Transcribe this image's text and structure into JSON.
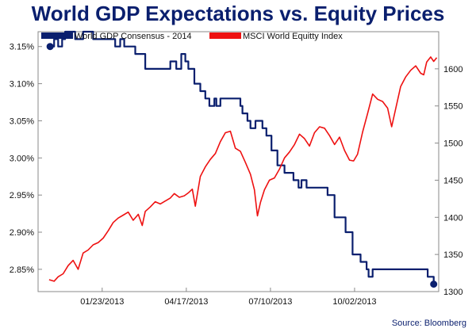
{
  "colors": {
    "title": "#0a1f6e",
    "gdp": "#0a1f6e",
    "equity": "#ee1111",
    "plot_bg": "#ffffff",
    "frame": "#8a8a8a"
  },
  "chart_data": {
    "type": "line",
    "title": "World GDP Expectations vs. Equity Prices",
    "source": "Source: Bloomberg",
    "grid": false,
    "legend_position": "top-left",
    "x_axis": {
      "range": [
        "2012-11-20",
        "2013-12-25"
      ],
      "tick_dates": [
        "2013-01-23",
        "2013-04-17",
        "2013-07-10",
        "2013-10-02"
      ],
      "tick_labels": [
        "01/23/2013",
        "04/17/2013",
        "07/10/2013",
        "10/02/2013"
      ]
    },
    "y_left": {
      "range": [
        2.82,
        3.17
      ],
      "ticks": [
        2.85,
        2.9,
        2.95,
        3.0,
        3.05,
        3.1,
        3.15
      ],
      "tick_labels": [
        "2.85%",
        "2.90%",
        "2.95%",
        "3.00%",
        "3.05%",
        "3.10%",
        "3.15%"
      ]
    },
    "y_right": {
      "range": [
        1300,
        1650
      ],
      "ticks": [
        1300,
        1350,
        1400,
        1450,
        1500,
        1550,
        1600
      ],
      "tick_labels": [
        "1300",
        "1350",
        "1400",
        "1450",
        "1500",
        "1550",
        "1600"
      ]
    },
    "series": [
      {
        "name": "World GDP Consensus - 2014",
        "axis": "left",
        "color": "#0a1f6e",
        "step": true,
        "points": [
          [
            "2012-12-02",
            3.15
          ],
          [
            "2012-12-06",
            3.16
          ],
          [
            "2012-12-10",
            3.15
          ],
          [
            "2012-12-14",
            3.16
          ],
          [
            "2012-12-17",
            3.17
          ],
          [
            "2012-12-27",
            3.16
          ],
          [
            "2013-01-04",
            3.17
          ],
          [
            "2013-01-14",
            3.16
          ],
          [
            "2013-01-17",
            3.16
          ],
          [
            "2013-02-05",
            3.15
          ],
          [
            "2013-02-10",
            3.16
          ],
          [
            "2013-02-14",
            3.15
          ],
          [
            "2013-02-25",
            3.14
          ],
          [
            "2013-03-07",
            3.12
          ],
          [
            "2013-04-01",
            3.13
          ],
          [
            "2013-04-07",
            3.12
          ],
          [
            "2013-04-12",
            3.14
          ],
          [
            "2013-04-16",
            3.13
          ],
          [
            "2013-04-19",
            3.12
          ],
          [
            "2013-04-25",
            3.1
          ],
          [
            "2013-05-01",
            3.09
          ],
          [
            "2013-05-06",
            3.08
          ],
          [
            "2013-05-10",
            3.07
          ],
          [
            "2013-05-15",
            3.08
          ],
          [
            "2013-05-17",
            3.07
          ],
          [
            "2013-05-21",
            3.08
          ],
          [
            "2013-06-10",
            3.07
          ],
          [
            "2013-06-12",
            3.06
          ],
          [
            "2013-06-17",
            3.05
          ],
          [
            "2013-06-20",
            3.04
          ],
          [
            "2013-06-25",
            3.05
          ],
          [
            "2013-07-02",
            3.04
          ],
          [
            "2013-07-06",
            3.03
          ],
          [
            "2013-07-11",
            3.01
          ],
          [
            "2013-07-17",
            2.99
          ],
          [
            "2013-07-24",
            2.98
          ],
          [
            "2013-08-02",
            2.97
          ],
          [
            "2013-08-07",
            2.96
          ],
          [
            "2013-08-10",
            2.97
          ],
          [
            "2013-08-15",
            2.96
          ],
          [
            "2013-09-05",
            2.95
          ],
          [
            "2013-09-12",
            2.92
          ],
          [
            "2013-09-23",
            2.9
          ],
          [
            "2013-09-30",
            2.87
          ],
          [
            "2013-10-08",
            2.86
          ],
          [
            "2013-10-14",
            2.85
          ],
          [
            "2013-10-16",
            2.84
          ],
          [
            "2013-10-20",
            2.85
          ],
          [
            "2013-12-14",
            2.84
          ],
          [
            "2013-12-20",
            2.83
          ]
        ],
        "start_marker": [
          "2012-12-02",
          3.15
        ],
        "end_marker": [
          "2013-12-20",
          2.83
        ]
      },
      {
        "name": "MSCI World Equitty Index",
        "axis": "right",
        "color": "#ee1111",
        "step": false,
        "points": [
          [
            "2012-12-01",
            1316
          ],
          [
            "2012-12-06",
            1314
          ],
          [
            "2012-12-10",
            1320
          ],
          [
            "2012-12-15",
            1324
          ],
          [
            "2012-12-20",
            1335
          ],
          [
            "2012-12-25",
            1342
          ],
          [
            "2012-12-30",
            1330
          ],
          [
            "2013-01-04",
            1352
          ],
          [
            "2013-01-09",
            1356
          ],
          [
            "2013-01-14",
            1363
          ],
          [
            "2013-01-19",
            1366
          ],
          [
            "2013-01-24",
            1372
          ],
          [
            "2013-01-29",
            1382
          ],
          [
            "2013-02-03",
            1393
          ],
          [
            "2013-02-08",
            1399
          ],
          [
            "2013-02-13",
            1403
          ],
          [
            "2013-02-18",
            1407
          ],
          [
            "2013-02-23",
            1396
          ],
          [
            "2013-02-28",
            1404
          ],
          [
            "2013-03-04",
            1389
          ],
          [
            "2013-03-07",
            1408
          ],
          [
            "2013-03-12",
            1414
          ],
          [
            "2013-03-17",
            1421
          ],
          [
            "2013-03-22",
            1418
          ],
          [
            "2013-03-27",
            1422
          ],
          [
            "2013-04-01",
            1426
          ],
          [
            "2013-04-05",
            1432
          ],
          [
            "2013-04-10",
            1427
          ],
          [
            "2013-04-15",
            1429
          ],
          [
            "2013-04-19",
            1433
          ],
          [
            "2013-04-23",
            1438
          ],
          [
            "2013-04-26",
            1415
          ],
          [
            "2013-05-01",
            1455
          ],
          [
            "2013-05-06",
            1468
          ],
          [
            "2013-05-11",
            1478
          ],
          [
            "2013-05-16",
            1486
          ],
          [
            "2013-05-21",
            1502
          ],
          [
            "2013-05-26",
            1514
          ],
          [
            "2013-05-31",
            1516
          ],
          [
            "2013-06-05",
            1493
          ],
          [
            "2013-06-10",
            1489
          ],
          [
            "2013-06-15",
            1474
          ],
          [
            "2013-06-20",
            1458
          ],
          [
            "2013-06-24",
            1437
          ],
          [
            "2013-06-27",
            1402
          ],
          [
            "2013-06-30",
            1420
          ],
          [
            "2013-07-04",
            1437
          ],
          [
            "2013-07-09",
            1450
          ],
          [
            "2013-07-14",
            1453
          ],
          [
            "2013-07-19",
            1465
          ],
          [
            "2013-07-24",
            1480
          ],
          [
            "2013-07-29",
            1488
          ],
          [
            "2013-08-03",
            1498
          ],
          [
            "2013-08-08",
            1512
          ],
          [
            "2013-08-13",
            1506
          ],
          [
            "2013-08-18",
            1496
          ],
          [
            "2013-08-23",
            1514
          ],
          [
            "2013-08-28",
            1522
          ],
          [
            "2013-09-02",
            1520
          ],
          [
            "2013-09-07",
            1510
          ],
          [
            "2013-09-12",
            1498
          ],
          [
            "2013-09-17",
            1508
          ],
          [
            "2013-09-22",
            1490
          ],
          [
            "2013-09-27",
            1477
          ],
          [
            "2013-10-01",
            1476
          ],
          [
            "2013-10-05",
            1485
          ],
          [
            "2013-10-10",
            1515
          ],
          [
            "2013-10-15",
            1540
          ],
          [
            "2013-10-20",
            1566
          ],
          [
            "2013-10-25",
            1559
          ],
          [
            "2013-10-30",
            1556
          ],
          [
            "2013-11-04",
            1547
          ],
          [
            "2013-11-08",
            1522
          ],
          [
            "2013-11-12",
            1546
          ],
          [
            "2013-11-17",
            1576
          ],
          [
            "2013-11-22",
            1589
          ],
          [
            "2013-11-27",
            1598
          ],
          [
            "2013-12-02",
            1604
          ],
          [
            "2013-12-07",
            1594
          ],
          [
            "2013-12-10",
            1592
          ],
          [
            "2013-12-13",
            1609
          ],
          [
            "2013-12-17",
            1616
          ],
          [
            "2013-12-20",
            1610
          ],
          [
            "2013-12-23",
            1615
          ]
        ]
      }
    ]
  }
}
